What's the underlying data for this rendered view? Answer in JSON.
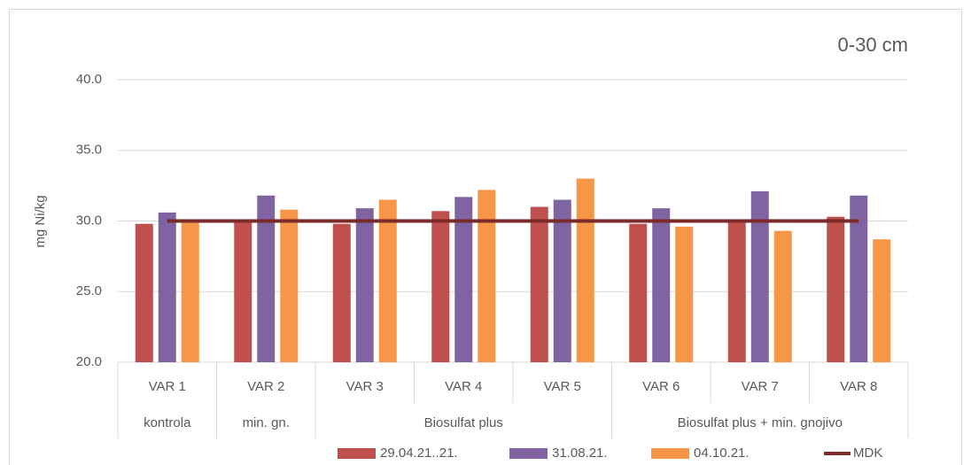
{
  "chart_data": {
    "type": "bar",
    "title": "0-30 cm",
    "y_label": "mg Ni/kg",
    "categories": [
      "VAR 1",
      "VAR 2",
      "VAR 3",
      "VAR 4",
      "VAR 5",
      "VAR 6",
      "VAR 7",
      "VAR 8"
    ],
    "groups": [
      {
        "label": "kontrola",
        "count": 1
      },
      {
        "label": "min. gn.",
        "count": 1
      },
      {
        "label": "Biosulfat plus",
        "count": 3
      },
      {
        "label": "Biosulfat plus + min. gnojivo",
        "count": 3
      }
    ],
    "series": [
      {
        "name": "29.04.21..21.",
        "color": "#c0504d",
        "values": [
          29.8,
          30.0,
          29.8,
          30.7,
          31.0,
          29.8,
          30.0,
          30.3
        ]
      },
      {
        "name": "31.08.21.",
        "color": "#8064a2",
        "values": [
          30.6,
          31.8,
          30.9,
          31.7,
          31.5,
          30.9,
          32.1,
          31.8
        ]
      },
      {
        "name": "04.10.21.",
        "color": "#f79646",
        "values": [
          30.0,
          30.8,
          31.5,
          32.2,
          33.0,
          29.6,
          29.3,
          28.7
        ]
      },
      {
        "name": "MDK",
        "color": "#7b2a2a",
        "type": "line",
        "values": [
          30,
          30,
          30,
          30,
          30,
          30,
          30,
          30
        ]
      }
    ],
    "ylim": [
      20,
      40
    ],
    "yticks": [
      {
        "value": 20,
        "label": "20.0"
      },
      {
        "value": 25,
        "label": "25.0"
      },
      {
        "value": 30,
        "label": "30.0"
      },
      {
        "value": 35,
        "label": "35.0"
      },
      {
        "value": 40,
        "label": "40.0"
      }
    ],
    "grid": true,
    "legend": "bottom"
  }
}
